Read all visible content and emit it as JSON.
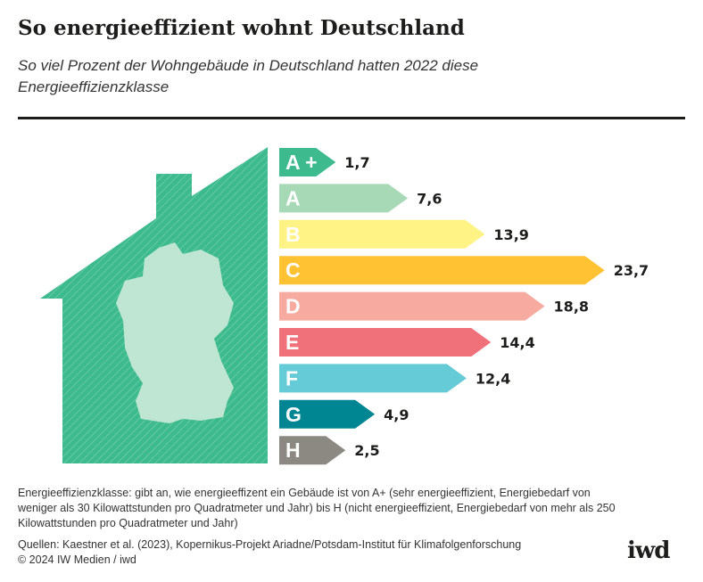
{
  "title": "So energieeffizient wohnt Deutschland",
  "subtitle": "So viel Prozent der Wohngebäude in Deutschland hatten 2022 diese Energieeffizienzklasse",
  "chart_data": {
    "type": "bar",
    "orientation": "horizontal",
    "categories": [
      "A +",
      "A",
      "B",
      "C",
      "D",
      "E",
      "F",
      "G",
      "H"
    ],
    "values": [
      1.7,
      7.6,
      13.9,
      23.7,
      18.8,
      14.4,
      12.4,
      4.9,
      2.5
    ],
    "value_labels": [
      "1,7",
      "7,6",
      "13,9",
      "23,7",
      "18,8",
      "14,4",
      "12,4",
      "4,9",
      "2,5"
    ],
    "colors": [
      "#3dba8e",
      "#a8d9b7",
      "#fff385",
      "#ffc233",
      "#f7aa9f",
      "#f0717a",
      "#65cbd6",
      "#008592",
      "#8c8982"
    ],
    "house_color": "#3dba8e"
  },
  "notes": "Energieeffizienzklasse: gibt an, wie energieeffizent ein Gebäude ist von A+ (sehr energieeffizient, Energiebedarf von weniger als 30 Kilowattstunden pro Quadratmeter und Jahr) bis H (nicht energieeffizient, Energiebedarf von mehr als 250 Kilowattstunden pro Quadratmeter und Jahr)",
  "sources": "Quellen: Kaestner et al. (2023), Kopernikus-Projekt Ariadne/Potsdam-Institut für Klimafolgenforschung",
  "copyright": "© 2024 IW Medien / iwd",
  "logo": "iwd"
}
